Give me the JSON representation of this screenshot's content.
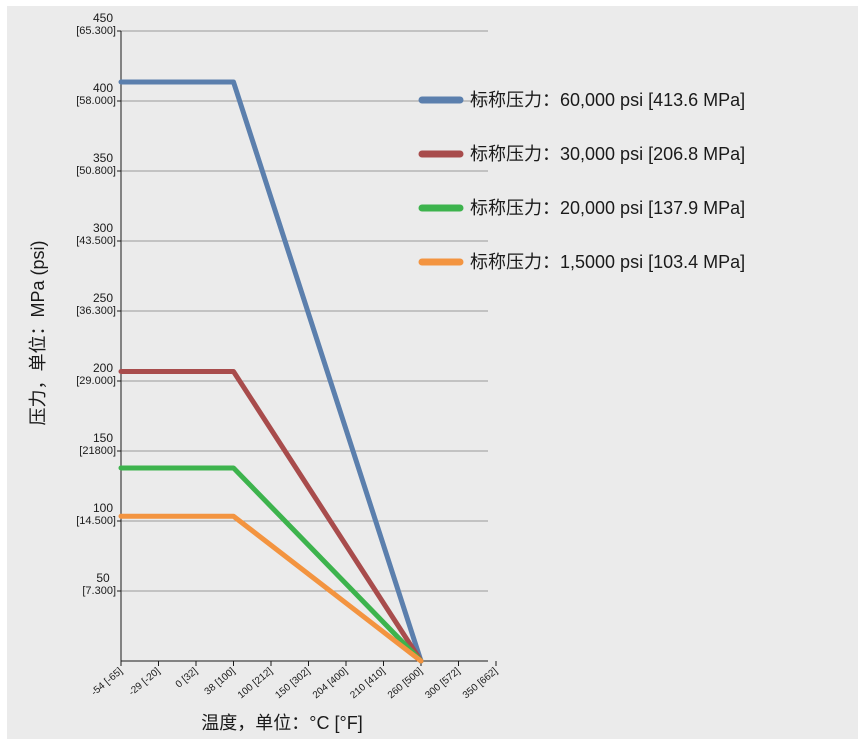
{
  "chart_data": {
    "type": "line",
    "xlabel": "温度，单位：°C [°F]",
    "ylabel": "压力，单位：MPa (psi)",
    "x_ticks": [
      "-54 [-65]",
      "-29 [-20]",
      "0 [32]",
      "38 [100]",
      "100 [212]",
      "150 [302]",
      "204 [400]",
      "210 [410]",
      "260 [500]",
      "300 [572]",
      "350 [662]"
    ],
    "y_ticks": [
      {
        "value": 50,
        "sub": "[7.300]"
      },
      {
        "value": 100,
        "sub": "[14.500]"
      },
      {
        "value": 150,
        "sub": "[21800]"
      },
      {
        "value": 200,
        "sub": "[29.000]"
      },
      {
        "value": 250,
        "sub": "[36.300]"
      },
      {
        "value": 300,
        "sub": "[43.500]"
      },
      {
        "value": 350,
        "sub": "[50.800]"
      },
      {
        "value": 400,
        "sub": "[58.000]"
      },
      {
        "value": 450,
        "sub": "[65.300]"
      }
    ],
    "ylim": [
      0,
      450
    ],
    "grid": true,
    "legend_position": "right",
    "series": [
      {
        "name": "标称压力：60,000 psi [413.6 MPa]",
        "color": "#5b7fad",
        "points": [
          {
            "x": "-54 [-65]",
            "y": 413.6
          },
          {
            "x": "38 [100]",
            "y": 413.6
          },
          {
            "x": "260 [500]",
            "y": 0
          }
        ]
      },
      {
        "name": "标称压力：30,000 psi [206.8 MPa]",
        "color": "#a84c4c",
        "points": [
          {
            "x": "-54 [-65]",
            "y": 206.8
          },
          {
            "x": "38 [100]",
            "y": 206.8
          },
          {
            "x": "260 [500]",
            "y": 0
          }
        ]
      },
      {
        "name": "标称压力：20,000 psi [137.9 MPa]",
        "color": "#3db34d",
        "points": [
          {
            "x": "-54 [-65]",
            "y": 137.9
          },
          {
            "x": "38 [100]",
            "y": 137.9
          },
          {
            "x": "260 [500]",
            "y": 0
          }
        ]
      },
      {
        "name": "标称压力：1,5000 psi [103.4 MPa]",
        "color": "#f39440",
        "points": [
          {
            "x": "-54 [-65]",
            "y": 103.4
          },
          {
            "x": "38 [100]",
            "y": 103.4
          },
          {
            "x": "260 [500]",
            "y": 0
          }
        ]
      }
    ]
  }
}
